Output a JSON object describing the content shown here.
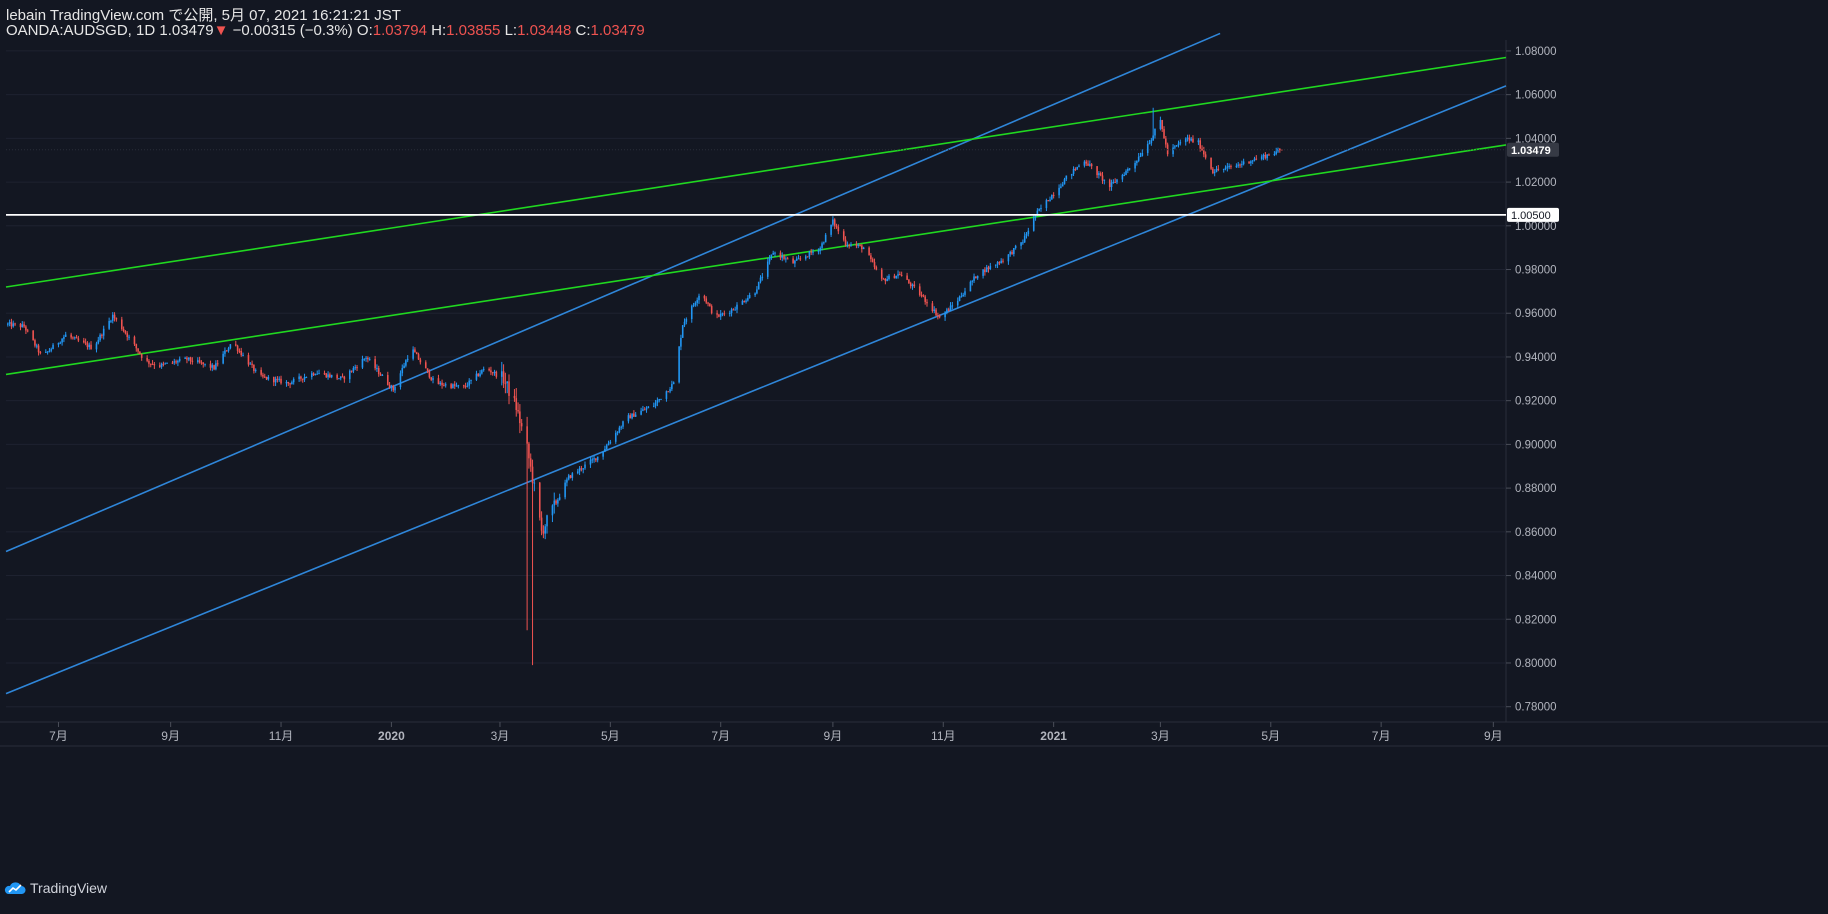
{
  "header": {
    "line1": "lebain TradingView.com で公開, 5月 07, 2021 16:21:21 JST",
    "symbol": "OANDA:AUDSGD, 1D",
    "last": "1.03479",
    "change_arrow": "▼",
    "change": "−0.00315 (−0.3%)",
    "o_label": "O:",
    "o_value": "1.03794",
    "h_label": "H:",
    "h_value": "1.03855",
    "l_label": "L:",
    "l_value": "1.03448",
    "c_label": "C:",
    "c_value": "1.03479"
  },
  "branding": {
    "logo_text": "TradingView",
    "logo_icon": "tradingview-cloud-icon"
  },
  "colors": {
    "background": "#131722",
    "up": "#2196f3",
    "down": "#ef5350",
    "trend_blue": "#2f86d9",
    "trend_green": "#20d820",
    "level_line": "#ffffff",
    "axis_text": "#b2b5be",
    "grid": "#1e2230"
  },
  "chart_data": {
    "type": "candlestick",
    "symbol": "OANDA:AUDSGD",
    "interval": "1D",
    "y_axis": {
      "ticks": [
        0.78,
        0.8,
        0.82,
        0.84,
        0.86,
        0.88,
        0.9,
        0.92,
        0.94,
        0.96,
        0.98,
        1.0,
        1.02,
        1.04,
        1.06,
        1.08
      ],
      "tick_labels": [
        "0.78000",
        "0.80000",
        "0.82000",
        "0.84000",
        "0.86000",
        "0.88000",
        "0.90000",
        "0.92000",
        "0.94000",
        "0.96000",
        "0.98000",
        "1.00000",
        "1.02000",
        "1.04000",
        "1.06000",
        "1.08000"
      ],
      "range": [
        0.773,
        1.085
      ]
    },
    "x_axis": {
      "range": [
        "2019-06-02",
        "2021-09-08"
      ],
      "ticks": [
        {
          "date": "2019-07-01",
          "label": "7月"
        },
        {
          "date": "2019-09-01",
          "label": "9月"
        },
        {
          "date": "2019-11-01",
          "label": "11月"
        },
        {
          "date": "2020-01-01",
          "label": "2020"
        },
        {
          "date": "2020-03-01",
          "label": "3月"
        },
        {
          "date": "2020-05-01",
          "label": "5月"
        },
        {
          "date": "2020-07-01",
          "label": "7月"
        },
        {
          "date": "2020-09-01",
          "label": "9月"
        },
        {
          "date": "2020-11-01",
          "label": "11月"
        },
        {
          "date": "2021-01-01",
          "label": "2021"
        },
        {
          "date": "2021-03-01",
          "label": "3月"
        },
        {
          "date": "2021-05-01",
          "label": "5月"
        },
        {
          "date": "2021-07-01",
          "label": "7月"
        },
        {
          "date": "2021-09-01",
          "label": "9月"
        }
      ]
    },
    "price_path": [
      [
        "2019-06-02",
        0.955
      ],
      [
        "2019-06-12",
        0.954
      ],
      [
        "2019-06-22",
        0.94
      ],
      [
        "2019-07-05",
        0.95
      ],
      [
        "2019-07-20",
        0.944
      ],
      [
        "2019-07-31",
        0.959
      ],
      [
        "2019-08-08",
        0.95
      ],
      [
        "2019-08-18",
        0.938
      ],
      [
        "2019-08-26",
        0.936
      ],
      [
        "2019-09-10",
        0.939
      ],
      [
        "2019-09-25",
        0.935
      ],
      [
        "2019-10-05",
        0.947
      ],
      [
        "2019-10-20",
        0.931
      ],
      [
        "2019-11-05",
        0.928
      ],
      [
        "2019-11-20",
        0.933
      ],
      [
        "2019-12-05",
        0.93
      ],
      [
        "2019-12-18",
        0.94
      ],
      [
        "2020-01-02",
        0.925
      ],
      [
        "2020-01-12",
        0.944
      ],
      [
        "2020-01-25",
        0.928
      ],
      [
        "2020-02-10",
        0.926
      ],
      [
        "2020-02-22",
        0.935
      ],
      [
        "2020-03-03",
        0.93
      ],
      [
        "2020-03-10",
        0.917
      ],
      [
        "2020-03-16",
        0.898
      ],
      [
        "2020-03-20",
        0.88
      ],
      [
        "2020-03-24",
        0.86
      ],
      [
        "2020-03-30",
        0.87
      ],
      [
        "2020-04-08",
        0.885
      ],
      [
        "2020-04-25",
        0.895
      ],
      [
        "2020-05-10",
        0.912
      ],
      [
        "2020-05-25",
        0.918
      ],
      [
        "2020-06-05",
        0.928
      ],
      [
        "2020-06-10",
        0.955
      ],
      [
        "2020-06-20",
        0.97
      ],
      [
        "2020-06-28",
        0.958
      ],
      [
        "2020-07-08",
        0.962
      ],
      [
        "2020-07-20",
        0.97
      ],
      [
        "2020-07-30",
        0.988
      ],
      [
        "2020-08-10",
        0.983
      ],
      [
        "2020-08-25",
        0.99
      ],
      [
        "2020-09-01",
        1.002
      ],
      [
        "2020-09-08",
        0.992
      ],
      [
        "2020-09-18",
        0.99
      ],
      [
        "2020-09-28",
        0.975
      ],
      [
        "2020-10-08",
        0.978
      ],
      [
        "2020-10-20",
        0.968
      ],
      [
        "2020-10-30",
        0.958
      ],
      [
        "2020-11-08",
        0.965
      ],
      [
        "2020-11-20",
        0.978
      ],
      [
        "2020-12-05",
        0.985
      ],
      [
        "2020-12-15",
        0.993
      ],
      [
        "2020-12-22",
        1.005
      ],
      [
        "2021-01-08",
        1.022
      ],
      [
        "2021-01-18",
        1.03
      ],
      [
        "2021-02-01",
        1.018
      ],
      [
        "2021-02-14",
        1.028
      ],
      [
        "2021-02-24",
        1.04
      ],
      [
        "2021-03-01",
        1.048
      ],
      [
        "2021-03-05",
        1.033
      ],
      [
        "2021-03-15",
        1.04
      ],
      [
        "2021-03-22",
        1.038
      ],
      [
        "2021-03-30",
        1.025
      ],
      [
        "2021-04-10",
        1.027
      ],
      [
        "2021-04-20",
        1.03
      ],
      [
        "2021-04-28",
        1.032
      ],
      [
        "2021-05-07",
        1.0348
      ]
    ],
    "wick_extremes": [
      {
        "date": "2020-03-19",
        "low": 0.799
      },
      {
        "date": "2020-03-16",
        "low": 0.815
      },
      {
        "date": "2021-02-25",
        "high": 1.054
      }
    ],
    "current_price": {
      "value": 1.03479,
      "label": "1.03479"
    },
    "horizontal_level": {
      "value": 1.005,
      "label": "1.00500"
    },
    "trendlines": [
      {
        "color": "blue",
        "from": [
          "2019-06-02",
          0.851
        ],
        "to": [
          "2021-04-03",
          1.088
        ]
      },
      {
        "color": "blue",
        "from": [
          "2019-06-02",
          0.786
        ],
        "to": [
          "2021-09-08",
          1.064
        ]
      },
      {
        "color": "green",
        "from": [
          "2019-06-02",
          0.972
        ],
        "to": [
          "2021-09-08",
          1.077
        ]
      },
      {
        "color": "green",
        "from": [
          "2019-06-02",
          0.932
        ],
        "to": [
          "2021-09-08",
          1.037
        ]
      }
    ]
  }
}
